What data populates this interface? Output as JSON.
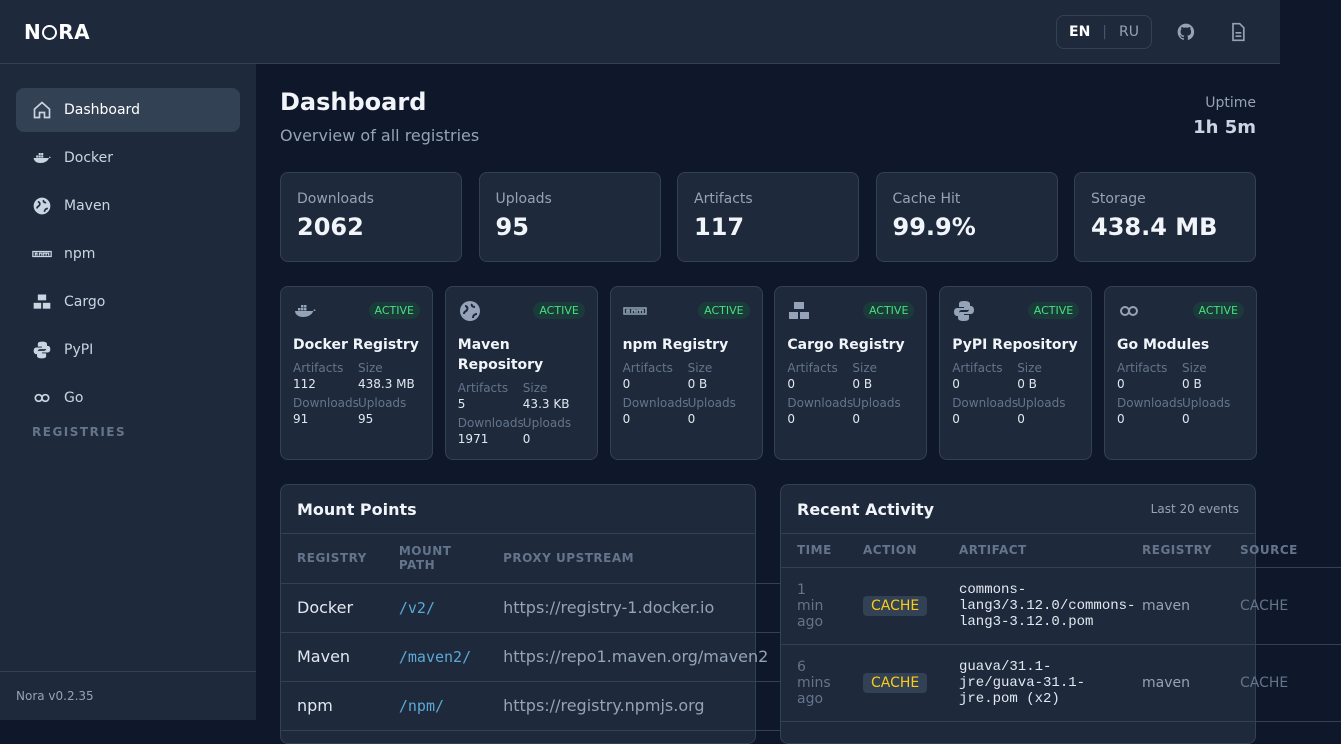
{
  "header": {
    "logo": "NORA",
    "lang_en": "EN",
    "lang_sep": "|",
    "lang_ru": "RU"
  },
  "sidebar": {
    "items": [
      {
        "label": "Dashboard",
        "icon": "home-icon"
      },
      {
        "label": "Docker",
        "icon": "docker-icon"
      },
      {
        "label": "Maven",
        "icon": "globe-icon"
      },
      {
        "label": "npm",
        "icon": "npm-icon"
      },
      {
        "label": "Cargo",
        "icon": "cargo-icon"
      },
      {
        "label": "PyPI",
        "icon": "python-icon"
      },
      {
        "label": "Go",
        "icon": "go-icon"
      }
    ],
    "section": "REGISTRIES",
    "version": "Nora v0.2.35"
  },
  "page": {
    "title": "Dashboard",
    "subtitle": "Overview of all registries",
    "uptime_label": "Uptime",
    "uptime_value": "1h 5m"
  },
  "stats": [
    {
      "label": "Downloads",
      "value": "2062"
    },
    {
      "label": "Uploads",
      "value": "95"
    },
    {
      "label": "Artifacts",
      "value": "117"
    },
    {
      "label": "Cache Hit",
      "value": "99.9%"
    },
    {
      "label": "Storage",
      "value": "438.4 MB"
    }
  ],
  "labels": {
    "artifacts": "Artifacts",
    "size": "Size",
    "downloads": "Downloads",
    "uploads": "Uploads",
    "active": "ACTIVE"
  },
  "registries": [
    {
      "name": "Docker Registry",
      "artifacts": "112",
      "size": "438.3 MB",
      "downloads": "91",
      "uploads": "95"
    },
    {
      "name": "Maven Repository",
      "artifacts": "5",
      "size": "43.3 KB",
      "downloads": "1971",
      "uploads": "0"
    },
    {
      "name": "npm Registry",
      "artifacts": "0",
      "size": "0 B",
      "downloads": "0",
      "uploads": "0"
    },
    {
      "name": "Cargo Registry",
      "artifacts": "0",
      "size": "0 B",
      "downloads": "0",
      "uploads": "0"
    },
    {
      "name": "PyPI Repository",
      "artifacts": "0",
      "size": "0 B",
      "downloads": "0",
      "uploads": "0"
    },
    {
      "name": "Go Modules",
      "artifacts": "0",
      "size": "0 B",
      "downloads": "0",
      "uploads": "0"
    }
  ],
  "mounts": {
    "title": "Mount Points",
    "headers": [
      "REGISTRY",
      "MOUNT PATH",
      "PROXY UPSTREAM"
    ],
    "rows": [
      {
        "registry": "Docker",
        "path": "/v2/",
        "upstream": "https://registry-1.docker.io"
      },
      {
        "registry": "Maven",
        "path": "/maven2/",
        "upstream": "https://repo1.maven.org/maven2"
      },
      {
        "registry": "npm",
        "path": "/npm/",
        "upstream": "https://registry.npmjs.org"
      }
    ]
  },
  "activity": {
    "title": "Recent Activity",
    "subtitle": "Last 20 events",
    "headers": [
      "TIME",
      "ACTION",
      "ARTIFACT",
      "REGISTRY",
      "SOURCE"
    ],
    "rows": [
      {
        "time": "1 min ago",
        "action": "CACHE",
        "artifact": "commons-lang3/3.12.0/commons-lang3-3.12.0.pom",
        "registry": "maven",
        "source": "CACHE"
      },
      {
        "time": "6 mins ago",
        "action": "CACHE",
        "artifact": "guava/31.1-jre/guava-31.1-jre.pom (x2)",
        "registry": "maven",
        "source": "CACHE"
      }
    ]
  }
}
